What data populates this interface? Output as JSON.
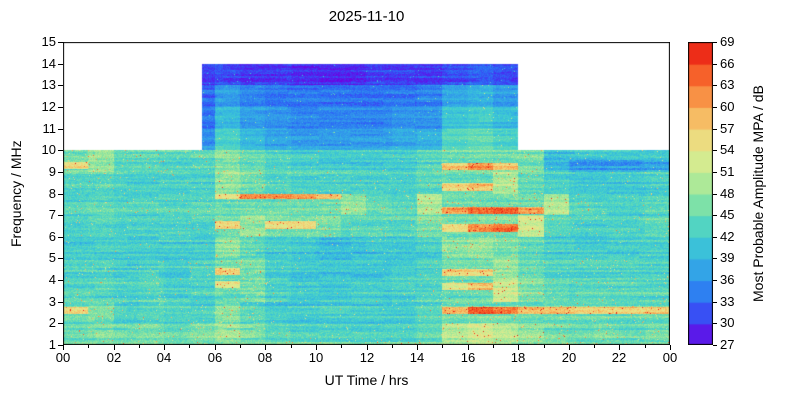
{
  "chart_data": {
    "type": "heatmap",
    "title": "2025-11-10",
    "xlabel": "UT Time / hrs",
    "ylabel": "Frequency / MHz",
    "colorbar_label": "Most Probable Amplitude MPA / dB",
    "x_range_hours": [
      0,
      24
    ],
    "x_tick_hours": [
      0,
      2,
      4,
      6,
      8,
      10,
      12,
      14,
      16,
      18,
      20,
      22,
      24
    ],
    "x_tick_labels": [
      "00",
      "02",
      "04",
      "06",
      "08",
      "10",
      "12",
      "14",
      "16",
      "18",
      "20",
      "22",
      "00"
    ],
    "x_minor_tick_hours": [
      1,
      3,
      5,
      7,
      9,
      11,
      13,
      15,
      17,
      19,
      21,
      23
    ],
    "y_range_mhz": [
      1,
      15
    ],
    "y_tick_values": [
      1,
      2,
      3,
      4,
      5,
      6,
      7,
      8,
      9,
      10,
      11,
      12,
      13,
      14,
      15
    ],
    "data_max_freq_mhz": 14,
    "night_max_freq_mhz": 10,
    "day_window_hours": [
      5.5,
      18
    ],
    "colorbar": {
      "min": 27,
      "max": 69,
      "tick_step": 3,
      "ticks": [
        27,
        30,
        33,
        36,
        39,
        42,
        45,
        48,
        51,
        54,
        57,
        60,
        63,
        66,
        69
      ]
    },
    "colormap_stops": [
      [
        27,
        "#7000e0"
      ],
      [
        30,
        "#4433f2"
      ],
      [
        33,
        "#2b6cf5"
      ],
      [
        36,
        "#3193ec"
      ],
      [
        39,
        "#35b4e2"
      ],
      [
        42,
        "#40cdd0"
      ],
      [
        45,
        "#63dbb4"
      ],
      [
        48,
        "#97e69b"
      ],
      [
        51,
        "#c3ec94"
      ],
      [
        54,
        "#e5e98c"
      ],
      [
        57,
        "#f3cf74"
      ],
      [
        60,
        "#f8a854"
      ],
      [
        63,
        "#f87a36"
      ],
      [
        66,
        "#f4471d"
      ],
      [
        69,
        "#e51212"
      ]
    ],
    "grid": {
      "row_order": "bottom_to_top: first row = 1-2 MHz, last row = 13-14 MHz",
      "col_order": "hour bins 00-01 ... 23-24",
      "values_db": [
        [
          45,
          46,
          45,
          46,
          45,
          46,
          48,
          46,
          44,
          43,
          43,
          43,
          43,
          43,
          44,
          50,
          52,
          50,
          48,
          46,
          45,
          46,
          45,
          46
        ],
        [
          55,
          46,
          43,
          44,
          43,
          43,
          47,
          44,
          42,
          42,
          42,
          42,
          42,
          42,
          43,
          58,
          64,
          62,
          58,
          57,
          56,
          56,
          56,
          57
        ],
        [
          44,
          44,
          43,
          44,
          43,
          43,
          54,
          46,
          43,
          42,
          42,
          42,
          42,
          43,
          44,
          54,
          58,
          52,
          47,
          45,
          44,
          44,
          44,
          44
        ],
        [
          43,
          43,
          42,
          43,
          42,
          43,
          57,
          46,
          42,
          41,
          41,
          41,
          41,
          42,
          43,
          57,
          56,
          48,
          45,
          43,
          43,
          43,
          43,
          43
        ],
        [
          42,
          42,
          42,
          42,
          42,
          42,
          47,
          44,
          42,
          41,
          40,
          40,
          41,
          41,
          42,
          47,
          48,
          46,
          44,
          42,
          42,
          42,
          42,
          42
        ],
        [
          43,
          44,
          43,
          43,
          43,
          43,
          57,
          48,
          56,
          56,
          46,
          44,
          44,
          44,
          46,
          56,
          62,
          64,
          52,
          44,
          43,
          43,
          43,
          44
        ],
        [
          44,
          45,
          44,
          44,
          44,
          44,
          55,
          62,
          62,
          61,
          58,
          48,
          45,
          44,
          50,
          60,
          63,
          64,
          60,
          50,
          44,
          43,
          43,
          44
        ],
        [
          44,
          44,
          43,
          43,
          43,
          43,
          48,
          46,
          44,
          43,
          43,
          43,
          43,
          43,
          44,
          56,
          58,
          50,
          45,
          43,
          42,
          42,
          42,
          43
        ],
        [
          56,
          48,
          44,
          44,
          44,
          44,
          47,
          45,
          43,
          42,
          42,
          42,
          42,
          42,
          44,
          58,
          62,
          58,
          46,
          40,
          37,
          37,
          37,
          38
        ],
        [
          36,
          36,
          36,
          36,
          36,
          36,
          43,
          40,
          38,
          37,
          37,
          37,
          37,
          38,
          39,
          44,
          45,
          43,
          40,
          36,
          36,
          36,
          36,
          36
        ],
        [
          34,
          34,
          34,
          34,
          34,
          34,
          40,
          37,
          36,
          35,
          35,
          35,
          35,
          36,
          36,
          41,
          42,
          40,
          37,
          34,
          34,
          34,
          34,
          34
        ],
        [
          33,
          33,
          33,
          33,
          33,
          33,
          37,
          35,
          34,
          34,
          34,
          34,
          34,
          34,
          35,
          38,
          39,
          37,
          35,
          33,
          33,
          33,
          33,
          33
        ],
        [
          30,
          30,
          30,
          30,
          30,
          30,
          31,
          30,
          30,
          29,
          29,
          29,
          30,
          30,
          30,
          31,
          32,
          31,
          30,
          30,
          30,
          30,
          30,
          30
        ]
      ],
      "streak_center_frac": [
        [
          0.5,
          0.5
        ],
        [
          0.6,
          0.6
        ],
        [
          0.8,
          0.7
        ],
        [
          0.4,
          0.35
        ],
        [
          0.5,
          0.5
        ],
        [
          0.55,
          0.4
        ],
        [
          0.9,
          0.2
        ],
        [
          0.4,
          0.3
        ],
        [
          0.3,
          0.25
        ],
        [
          0.5,
          0.5
        ],
        [
          0.5,
          0.5
        ],
        [
          0.5,
          0.5
        ],
        [
          0.5,
          0.5
        ]
      ]
    },
    "texture": {
      "seed": 20251110,
      "row_streak_noise_db": 1.8,
      "segment_noise_db": 1.3,
      "speckle_db": 4.5,
      "spike_probability": 0.03,
      "spike_db": [
        6,
        18
      ],
      "bottom_edge_value_db": 48,
      "high_streak_halfwidth_mhz": 0.17,
      "low_streak_halfwidth_mhz": 0.28,
      "high_streak_background_db": 45,
      "low_streak_background_db": 41
    }
  }
}
